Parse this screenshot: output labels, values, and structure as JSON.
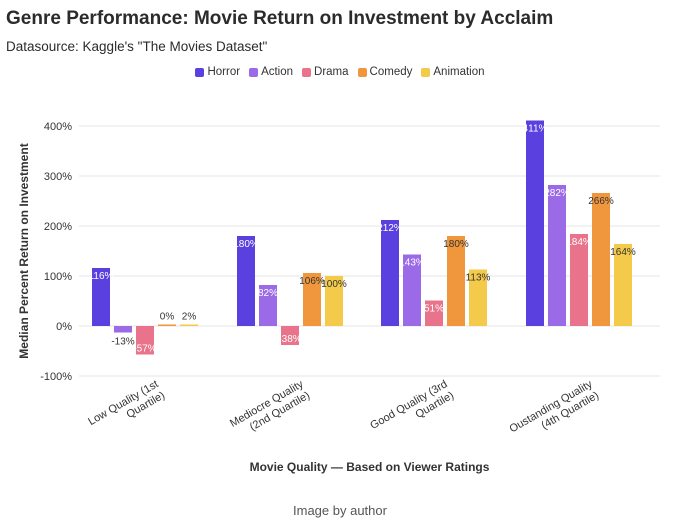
{
  "title": "Genre Performance: Movie Return on Investment by Acclaim",
  "subtitle": "Datasource: Kaggle's \"The Movies Dataset\"",
  "caption": "Image by author",
  "chart_data": {
    "type": "bar",
    "xlabel": "Movie Quality — Based on Viewer Ratings",
    "ylabel": "Median Percent Return on Investment",
    "ylim": [
      -100,
      400
    ],
    "yticks": [
      -100,
      0,
      100,
      200,
      300,
      400
    ],
    "ytick_labels": [
      "-100%",
      "0%",
      "100%",
      "200%",
      "300%",
      "400%"
    ],
    "grid": true,
    "legend_position": "top-center",
    "categories": [
      [
        "Low Quality (1st",
        "Quartile)"
      ],
      [
        "Mediocre Quality",
        "(2nd Quartile)"
      ],
      [
        "Good Quality (3rd",
        "Quartile)"
      ],
      [
        "Oustanding Quality",
        "(4th Quartile)"
      ]
    ],
    "series": [
      {
        "name": "Horror",
        "color": "#5b40e0",
        "values": [
          116,
          180,
          212,
          411
        ],
        "labels": [
          "116%",
          "180%",
          "212%",
          "411%"
        ]
      },
      {
        "name": "Action",
        "color": "#9b6ae6",
        "values": [
          -13,
          82,
          143,
          282
        ],
        "labels": [
          "-13%",
          "82%",
          "143%",
          "282%"
        ]
      },
      {
        "name": "Drama",
        "color": "#e8738b",
        "values": [
          -57,
          -38,
          51,
          184
        ],
        "labels": [
          "-57%",
          "-38%",
          "51%",
          "184%"
        ]
      },
      {
        "name": "Comedy",
        "color": "#f0963c",
        "values": [
          0,
          106,
          180,
          266
        ],
        "labels": [
          "0%",
          "106%",
          "180%",
          "266%"
        ]
      },
      {
        "name": "Animation",
        "color": "#f4ca4a",
        "values": [
          2,
          100,
          113,
          164
        ],
        "labels": [
          "2%",
          "100%",
          "113%",
          "164%"
        ]
      }
    ]
  }
}
